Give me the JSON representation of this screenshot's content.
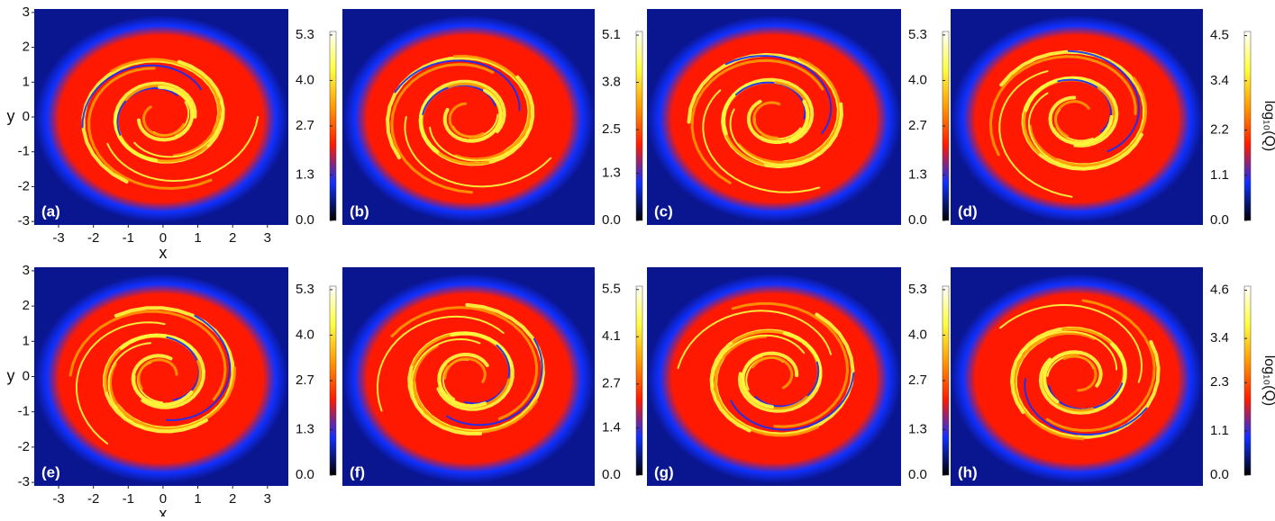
{
  "chart_data": [
    {
      "type": "heatmap",
      "label": "(a)",
      "colormap": [
        "#000000",
        "#1030ff",
        "#ff1a00",
        "#ff9a00",
        "#ffff40",
        "#ffffff"
      ],
      "clim": [
        0,
        5.4
      ],
      "cticks": [
        {
          "value": 0,
          "label": "0.0"
        },
        1.3,
        2.7,
        {
          "value": 4,
          "label": "4.0"
        },
        5.3
      ],
      "xlabel": "x",
      "ylabel": "y",
      "xlim": [
        -3.7,
        3.6
      ],
      "ylim": [
        -3.1,
        3.1
      ],
      "xticks": [
        -3,
        -2,
        -1,
        0,
        1,
        2,
        3
      ],
      "yticks": [
        -3,
        -2,
        -1,
        0,
        1,
        2,
        3
      ]
    },
    {
      "type": "heatmap",
      "label": "(b)",
      "colormap": [
        "#000000",
        "#1030ff",
        "#ff1a00",
        "#ff9a00",
        "#ffff40",
        "#ffffff"
      ],
      "clim": [
        0,
        5.2
      ],
      "cticks": [
        {
          "value": 0,
          "label": "0.0"
        },
        1.3,
        2.5,
        3.8,
        5.1
      ]
    },
    {
      "type": "heatmap",
      "label": "(c)",
      "colormap": [
        "#000000",
        "#1030ff",
        "#ff1a00",
        "#ff9a00",
        "#ffff40",
        "#ffffff"
      ],
      "clim": [
        0,
        5.4
      ],
      "cticks": [
        {
          "value": 0,
          "label": "0.0"
        },
        1.3,
        2.7,
        {
          "value": 4,
          "label": "4.0"
        },
        5.3
      ]
    },
    {
      "type": "heatmap",
      "label": "(d)",
      "colormap": [
        "#000000",
        "#1030ff",
        "#ff1a00",
        "#ff9a00",
        "#ffff40",
        "#ffffff"
      ],
      "clim": [
        0,
        4.6
      ],
      "cticks": [
        {
          "value": 0,
          "label": "0.0"
        },
        1.1,
        2.2,
        3.4,
        4.5
      ],
      "colorbar_label": "log₁₀(Q)"
    },
    {
      "type": "heatmap",
      "label": "(e)",
      "colormap": [
        "#000000",
        "#1030ff",
        "#ff1a00",
        "#ff9a00",
        "#ffff40",
        "#ffffff"
      ],
      "clim": [
        0,
        5.4
      ],
      "cticks": [
        {
          "value": 0,
          "label": "0.0"
        },
        1.3,
        2.7,
        {
          "value": 4,
          "label": "4.0"
        },
        5.3
      ],
      "xlabel": "x",
      "ylabel": "y",
      "xlim": [
        -3.7,
        3.6
      ],
      "ylim": [
        -3.1,
        3.1
      ],
      "xticks": [
        -3,
        -2,
        -1,
        0,
        1,
        2,
        3
      ],
      "yticks": [
        -3,
        -2,
        -1,
        0,
        1,
        2,
        3
      ]
    },
    {
      "type": "heatmap",
      "label": "(f)",
      "colormap": [
        "#000000",
        "#1030ff",
        "#ff1a00",
        "#ff9a00",
        "#ffff40",
        "#ffffff"
      ],
      "clim": [
        0,
        5.6
      ],
      "cticks": [
        {
          "value": 0,
          "label": "0.0"
        },
        1.4,
        2.7,
        4.1,
        5.5
      ]
    },
    {
      "type": "heatmap",
      "label": "(g)",
      "colormap": [
        "#000000",
        "#1030ff",
        "#ff1a00",
        "#ff9a00",
        "#ffff40",
        "#ffffff"
      ],
      "clim": [
        0,
        5.4
      ],
      "cticks": [
        {
          "value": 0,
          "label": "0.0"
        },
        1.3,
        2.7,
        {
          "value": 4,
          "label": "4.0"
        },
        5.3
      ]
    },
    {
      "type": "heatmap",
      "label": "(h)",
      "colormap": [
        "#000000",
        "#1030ff",
        "#ff1a00",
        "#ff9a00",
        "#ffff40",
        "#ffffff"
      ],
      "clim": [
        0,
        4.7
      ],
      "cticks": [
        {
          "value": 0,
          "label": "0.0"
        },
        1.1,
        2.3,
        3.4,
        4.6
      ],
      "colorbar_label": "log₁₀(Q)"
    }
  ]
}
